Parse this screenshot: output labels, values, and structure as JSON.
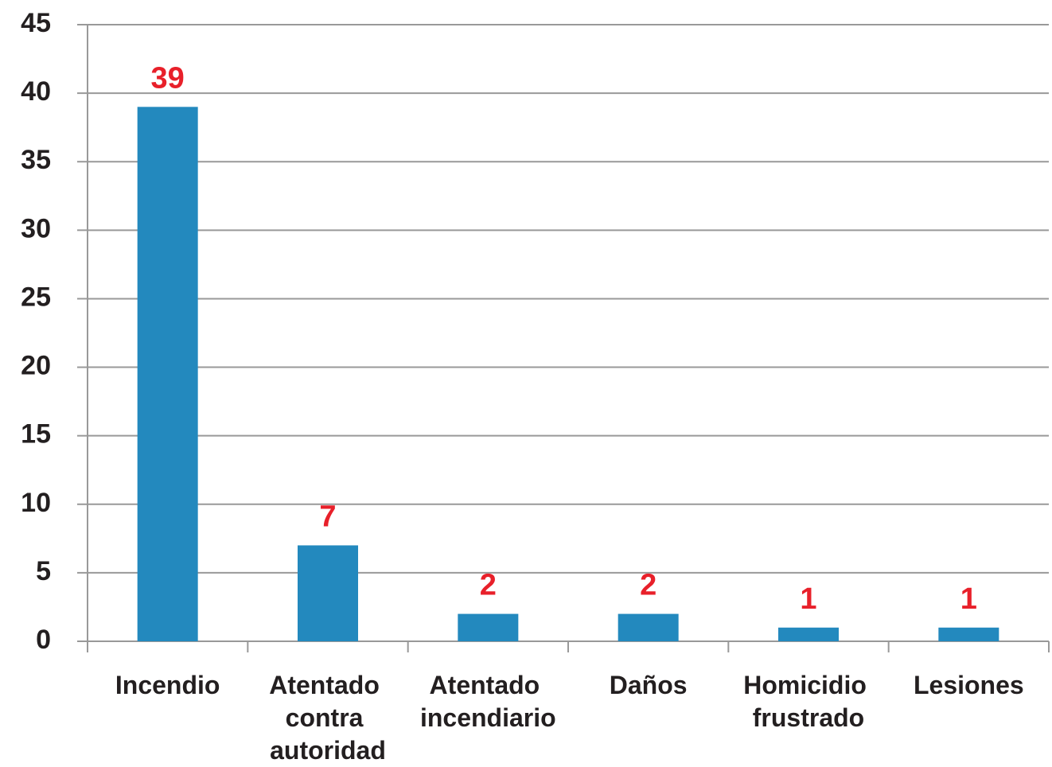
{
  "chart_data": {
    "type": "bar",
    "categories": [
      "Incendio",
      "Atentado contra autoridad",
      "Atentado incendiario",
      "Daños",
      "Homicidio frustrado",
      "Lesiones"
    ],
    "values": [
      39,
      7,
      2,
      2,
      1,
      1
    ],
    "color": "#2389be",
    "value_label_color": "#e8202a",
    "ylim": [
      0,
      45
    ],
    "yticks": [
      0,
      5,
      10,
      15,
      20,
      25,
      30,
      35,
      40,
      45
    ],
    "grid": true
  }
}
